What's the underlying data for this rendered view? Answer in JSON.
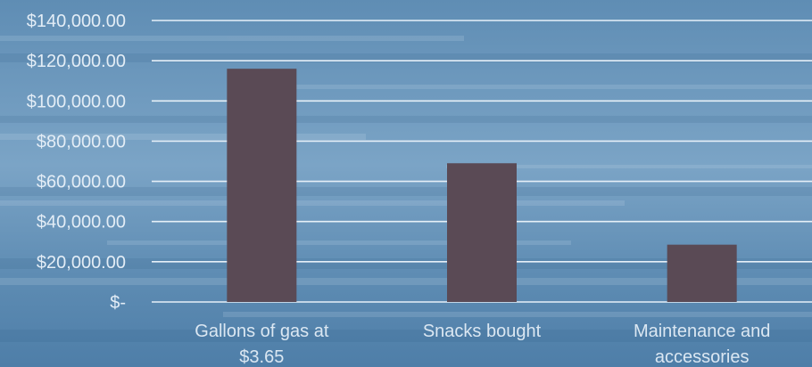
{
  "chart_data": {
    "type": "bar",
    "title": "",
    "xlabel": "",
    "ylabel": "",
    "categories": [
      [
        "Gallons of gas at",
        "$3.65"
      ],
      [
        "Snacks bought"
      ],
      [
        "Maintenance and",
        "accessories"
      ]
    ],
    "values": [
      116000,
      69000,
      28500
    ],
    "ylim": [
      0,
      140000
    ],
    "yticks": [
      0,
      20000,
      40000,
      60000,
      80000,
      100000,
      120000,
      140000
    ],
    "ytick_labels": [
      "$-",
      "$20,000.00",
      "$40,000.00",
      "$60,000.00",
      "$80,000.00",
      "$100,000.00",
      "$120,000.00",
      "$140,000.00"
    ],
    "grid": true,
    "legend": "none",
    "colors": {
      "bar": "#5a4a55",
      "grid": "#e6f0f8",
      "sky_top": "#5f8db4",
      "sky_mid": "#7ba4c6",
      "sky_bottom": "#4e7ea8"
    }
  }
}
